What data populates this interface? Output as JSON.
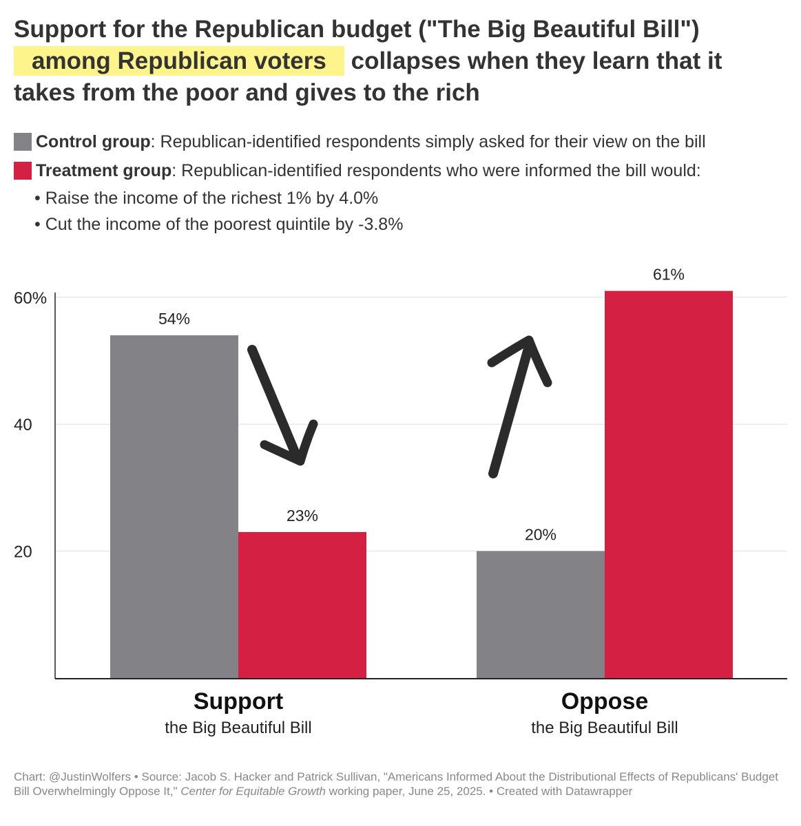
{
  "title": {
    "line1": "Support for the Republican budget (\"The Big Beautiful Bill\")",
    "highlight": "among Republican voters",
    "line2_rest": "collapses when they learn that it",
    "line3": "takes from the poor and gives to the rich"
  },
  "legend": {
    "control_label": "Control group",
    "control_desc": ": Republican-identified respondents simply asked for their view on the bill",
    "treatment_label": "Treatment group",
    "treatment_desc": ": Republican-identified respondents who were informed the bill would:",
    "bullets": [
      "• Raise the income of the richest 1% by 4.0%",
      "• Cut the income of the poorest quintile by -3.8%"
    ]
  },
  "colors": {
    "control": "#828287",
    "treatment": "#d42143",
    "highlight": "#fdf48c",
    "arrow": "#2b2b2b"
  },
  "chart_data": {
    "type": "bar",
    "categories": [
      "Support",
      "Oppose"
    ],
    "category_sublabels": [
      "the Big Beautiful Bill",
      "the Big Beautiful Bill"
    ],
    "series": [
      {
        "name": "Control group",
        "values": [
          54,
          20
        ]
      },
      {
        "name": "Treatment group",
        "values": [
          23,
          61
        ]
      }
    ],
    "data_labels": [
      [
        "54%",
        "20%"
      ],
      [
        "23%",
        "61%"
      ]
    ],
    "y_ticks": [
      {
        "value": 20,
        "label": "20"
      },
      {
        "value": 40,
        "label": "40"
      },
      {
        "value": 60,
        "label": "60%"
      }
    ],
    "ylim": [
      0,
      60
    ],
    "grid": true,
    "annotations": [
      "down-arrow",
      "up-arrow"
    ]
  },
  "source": {
    "prefix": "Chart: @JustinWolfers • Source: Jacob S. Hacker and Patrick Sullivan, \"Americans Informed About the Distributional Effects of Republicans' Budget Bill Overwhelmingly Oppose It,\" ",
    "publication": "Center for Equitable Growth",
    "suffix": " working paper, June 25, 2025. • Created with Datawrapper"
  }
}
